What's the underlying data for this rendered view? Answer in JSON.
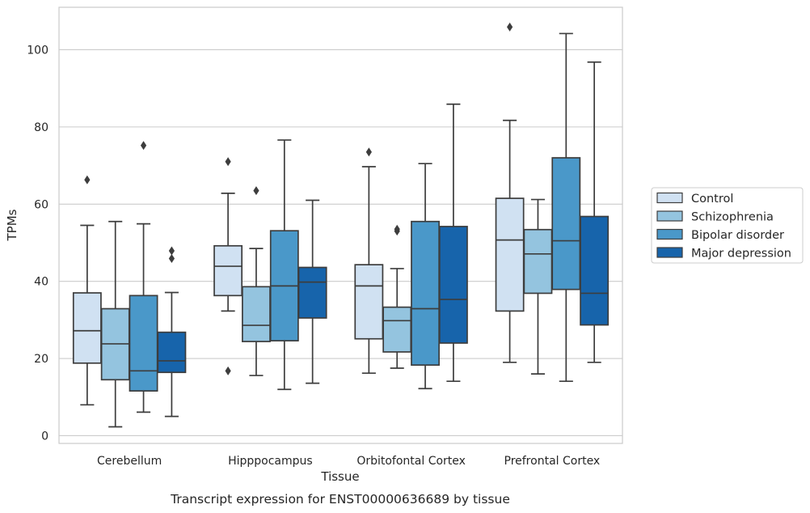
{
  "chart_data": {
    "type": "boxplot",
    "xlabel": "Tissue",
    "ylabel": "TPMs",
    "caption": "Transcript expression for ENST00000636689 by tissue",
    "ylim": [
      -2,
      111
    ],
    "yticks": [
      0,
      20,
      40,
      60,
      80,
      100
    ],
    "grid": "horizontal",
    "legend_position": "right",
    "categories": [
      "Cerebellum",
      "Hipppocampus",
      "Orbitofontal Cortex",
      "Prefrontal Cortex"
    ],
    "series": [
      {
        "name": "Control",
        "color": "#d0e1f2",
        "boxes": [
          {
            "whislo": 8,
            "q1": 18.8,
            "med": 27.2,
            "q3": 37,
            "whishi": 54.5,
            "fliers": [
              66.3
            ]
          },
          {
            "whislo": 32.3,
            "q1": 36.3,
            "med": 43.9,
            "q3": 49.2,
            "whishi": 62.8,
            "fliers": [
              71,
              16.8
            ]
          },
          {
            "whislo": 16.2,
            "q1": 25.1,
            "med": 38.8,
            "q3": 44.3,
            "whishi": 69.7,
            "fliers": [
              73.5
            ]
          },
          {
            "whislo": 19,
            "q1": 32.3,
            "med": 50.7,
            "q3": 61.5,
            "whishi": 81.7,
            "fliers": [
              105.9
            ]
          }
        ]
      },
      {
        "name": "Schizophrenia",
        "color": "#94c4df",
        "boxes": [
          {
            "whislo": 2.3,
            "q1": 14.5,
            "med": 23.8,
            "q3": 32.9,
            "whishi": 55.5,
            "fliers": []
          },
          {
            "whislo": 15.6,
            "q1": 24.4,
            "med": 28.6,
            "q3": 38.6,
            "whishi": 48.5,
            "fliers": [
              63.5
            ]
          },
          {
            "whislo": 17.5,
            "q1": 21.7,
            "med": 29.8,
            "q3": 33.3,
            "whishi": 43.3,
            "fliers": [
              53,
              53.5
            ]
          },
          {
            "whislo": 16,
            "q1": 36.9,
            "med": 47.1,
            "q3": 53.4,
            "whishi": 61.2,
            "fliers": []
          }
        ]
      },
      {
        "name": "Bipolar disorder",
        "color": "#4a98c9",
        "boxes": [
          {
            "whislo": 6.1,
            "q1": 11.6,
            "med": 16.8,
            "q3": 36.3,
            "whishi": 54.9,
            "fliers": [
              75.2
            ]
          },
          {
            "whislo": 12,
            "q1": 24.6,
            "med": 38.8,
            "q3": 53.1,
            "whishi": 76.6,
            "fliers": []
          },
          {
            "whislo": 12.2,
            "q1": 18.3,
            "med": 32.9,
            "q3": 55.5,
            "whishi": 70.5,
            "fliers": []
          },
          {
            "whislo": 14.1,
            "q1": 37.9,
            "med": 50.5,
            "q3": 72,
            "whishi": 104.2,
            "fliers": []
          }
        ]
      },
      {
        "name": "Major depression",
        "color": "#1764ab",
        "boxes": [
          {
            "whislo": 5,
            "q1": 16.4,
            "med": 19.4,
            "q3": 26.8,
            "whishi": 37.1,
            "fliers": [
              45.9,
              47.9
            ]
          },
          {
            "whislo": 13.6,
            "q1": 30.5,
            "med": 39.8,
            "q3": 43.6,
            "whishi": 61,
            "fliers": []
          },
          {
            "whislo": 14.1,
            "q1": 24,
            "med": 35.3,
            "q3": 54.2,
            "whishi": 85.9,
            "fliers": []
          },
          {
            "whislo": 19,
            "q1": 28.7,
            "med": 36.9,
            "q3": 56.8,
            "whishi": 96.8,
            "fliers": []
          }
        ]
      }
    ]
  }
}
